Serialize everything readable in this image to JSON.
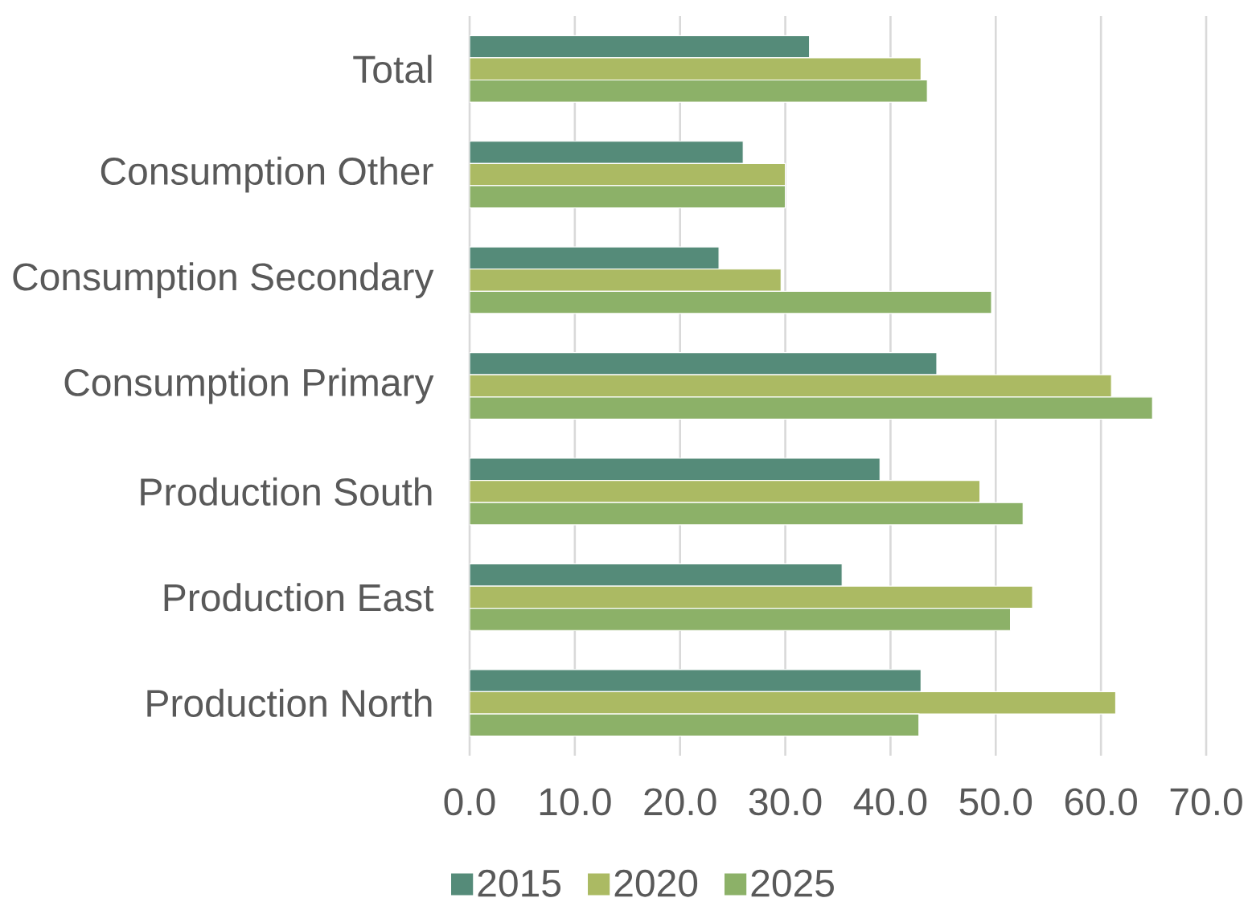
{
  "chart_data": {
    "type": "bar",
    "orientation": "horizontal",
    "categories": [
      "Total",
      "Consumption Other",
      "Consumption Secondary",
      "Consumption Primary",
      "Production South",
      "Production East",
      "Production North"
    ],
    "series": [
      {
        "name": "2015",
        "color": "#558b79",
        "values": [
          32.3,
          26.0,
          23.7,
          44.4,
          39.0,
          35.4,
          42.9
        ]
      },
      {
        "name": "2020",
        "color": "#abba63",
        "values": [
          42.9,
          30.0,
          29.6,
          61.0,
          48.5,
          53.5,
          61.4
        ]
      },
      {
        "name": "2025",
        "color": "#8cb168",
        "values": [
          43.5,
          30.0,
          49.6,
          64.9,
          52.6,
          51.4,
          42.7
        ]
      }
    ],
    "xlim": [
      0,
      70
    ],
    "xticks": [
      {
        "value": 0,
        "label": "0.0"
      },
      {
        "value": 10,
        "label": "10.0"
      },
      {
        "value": 20,
        "label": "20.0"
      },
      {
        "value": 30,
        "label": "30.0"
      },
      {
        "value": 40,
        "label": "40.0"
      },
      {
        "value": 50,
        "label": "50.0"
      },
      {
        "value": 60,
        "label": "60.0"
      },
      {
        "value": 70,
        "label": "70.0"
      }
    ],
    "grid": "x",
    "legend": "bottom"
  }
}
